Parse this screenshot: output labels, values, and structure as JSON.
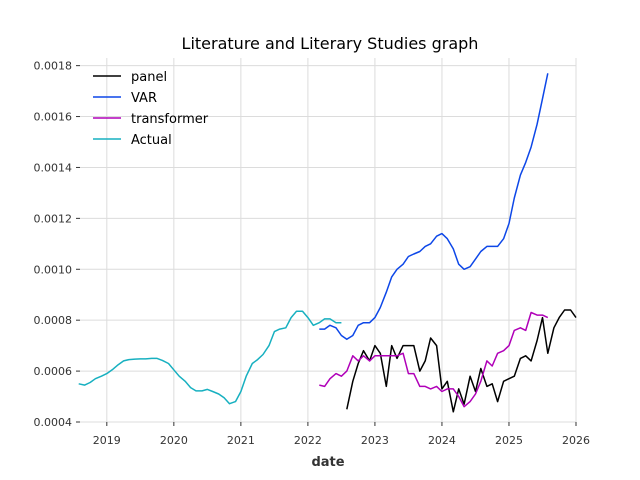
{
  "chart_data": {
    "type": "line",
    "title": "Literature and Literary Studies graph",
    "xlabel": "date",
    "ylabel": "",
    "x_range": [
      2018.6,
      2026.0
    ],
    "ylim": [
      0.0004,
      0.00183
    ],
    "x_ticks": [
      2019,
      2020,
      2021,
      2022,
      2023,
      2024,
      2025,
      2026
    ],
    "y_ticks": [
      0.0004,
      0.0006,
      0.0008,
      0.001,
      0.0012,
      0.0014,
      0.0016,
      0.0018
    ],
    "grid": true,
    "legend_position": "top-left",
    "series": [
      {
        "name": "panel",
        "color": "#000000",
        "x": [
          2022.58,
          2022.67,
          2022.75,
          2022.83,
          2022.92,
          2023.0,
          2023.08,
          2023.17,
          2023.25,
          2023.33,
          2023.42,
          2023.5,
          2023.58,
          2023.67,
          2023.75,
          2023.83,
          2023.92,
          2024.0,
          2024.08,
          2024.17,
          2024.25,
          2024.33,
          2024.42,
          2024.5,
          2024.58,
          2024.67,
          2024.75,
          2024.83,
          2024.92,
          2025.0,
          2025.08,
          2025.17,
          2025.25,
          2025.33,
          2025.42,
          2025.5,
          2025.58,
          2025.67,
          2025.75,
          2025.83,
          2025.92,
          2026.0
        ],
        "y": [
          0.00045,
          0.00056,
          0.00063,
          0.00068,
          0.00064,
          0.0007,
          0.00067,
          0.00054,
          0.0007,
          0.00065,
          0.0007,
          0.0007,
          0.0007,
          0.0006,
          0.00064,
          0.00073,
          0.0007,
          0.00053,
          0.00056,
          0.00044,
          0.00053,
          0.00047,
          0.00058,
          0.00052,
          0.00061,
          0.00054,
          0.00055,
          0.00048,
          0.00056,
          0.00057,
          0.00058,
          0.00065,
          0.00066,
          0.00064,
          0.00072,
          0.00081,
          0.00067,
          0.00077,
          0.00081,
          0.00084,
          0.00084,
          0.00081
        ]
      },
      {
        "name": "VAR",
        "color": "#0d47e8",
        "x": [
          2022.17,
          2022.25,
          2022.33,
          2022.42,
          2022.5,
          2022.58,
          2022.67,
          2022.75,
          2022.83,
          2022.92,
          2023.0,
          2023.08,
          2023.17,
          2023.25,
          2023.33,
          2023.42,
          2023.5,
          2023.58,
          2023.67,
          2023.75,
          2023.83,
          2023.92,
          2024.0,
          2024.08,
          2024.17,
          2024.25,
          2024.33,
          2024.42,
          2024.5,
          2024.58,
          2024.67,
          2024.75,
          2024.83,
          2024.92,
          2025.0,
          2025.08,
          2025.17,
          2025.25,
          2025.33,
          2025.42,
          2025.5,
          2025.58
        ],
        "y": [
          0.000765,
          0.000765,
          0.00078,
          0.00077,
          0.00074,
          0.000725,
          0.00074,
          0.00078,
          0.00079,
          0.00079,
          0.00081,
          0.00085,
          0.00091,
          0.00097,
          0.001,
          0.00102,
          0.00105,
          0.00106,
          0.00107,
          0.00109,
          0.0011,
          0.00113,
          0.00114,
          0.00112,
          0.00108,
          0.00102,
          0.001,
          0.00101,
          0.00104,
          0.00107,
          0.00109,
          0.00109,
          0.00109,
          0.00112,
          0.00118,
          0.00128,
          0.00137,
          0.00142,
          0.00148,
          0.00157,
          0.00167,
          0.00177
        ]
      },
      {
        "name": "transformer",
        "color": "#b000b8",
        "x": [
          2022.17,
          2022.25,
          2022.33,
          2022.42,
          2022.5,
          2022.58,
          2022.67,
          2022.75,
          2022.83,
          2022.92,
          2023.0,
          2023.08,
          2023.17,
          2023.25,
          2023.33,
          2023.42,
          2023.5,
          2023.58,
          2023.67,
          2023.75,
          2023.83,
          2023.92,
          2024.0,
          2024.08,
          2024.17,
          2024.25,
          2024.33,
          2024.42,
          2024.5,
          2024.58,
          2024.67,
          2024.75,
          2024.83,
          2024.92,
          2025.0,
          2025.08,
          2025.17,
          2025.25,
          2025.33,
          2025.42,
          2025.5,
          2025.58
        ],
        "y": [
          0.000545,
          0.00054,
          0.00057,
          0.00059,
          0.00058,
          0.0006,
          0.00066,
          0.00064,
          0.00066,
          0.00064,
          0.00066,
          0.00066,
          0.00066,
          0.00066,
          0.00066,
          0.00067,
          0.00059,
          0.00059,
          0.00054,
          0.00054,
          0.00053,
          0.00054,
          0.00052,
          0.00053,
          0.00053,
          0.0005,
          0.00046,
          0.00048,
          0.00051,
          0.00056,
          0.00064,
          0.00062,
          0.00067,
          0.00068,
          0.0007,
          0.00076,
          0.00077,
          0.00076,
          0.00083,
          0.00082,
          0.00082,
          0.00081
        ]
      },
      {
        "name": "Actual",
        "color": "#17b0c0",
        "x": [
          2018.58,
          2018.67,
          2018.75,
          2018.83,
          2018.92,
          2019.0,
          2019.08,
          2019.17,
          2019.25,
          2019.33,
          2019.42,
          2019.5,
          2019.58,
          2019.67,
          2019.75,
          2019.83,
          2019.92,
          2020.0,
          2020.08,
          2020.17,
          2020.25,
          2020.33,
          2020.42,
          2020.5,
          2020.58,
          2020.67,
          2020.75,
          2020.83,
          2020.92,
          2021.0,
          2021.08,
          2021.17,
          2021.25,
          2021.33,
          2021.42,
          2021.5,
          2021.58,
          2021.67,
          2021.75,
          2021.83,
          2021.92,
          2022.0,
          2022.08,
          2022.17,
          2022.25,
          2022.33,
          2022.42,
          2022.5
        ],
        "y": [
          0.00055,
          0.000545,
          0.000555,
          0.00057,
          0.00058,
          0.00059,
          0.000605,
          0.000625,
          0.00064,
          0.000645,
          0.000647,
          0.000648,
          0.000648,
          0.00065,
          0.00065,
          0.000642,
          0.00063,
          0.000605,
          0.00058,
          0.00056,
          0.000535,
          0.000522,
          0.000522,
          0.000528,
          0.00052,
          0.00051,
          0.000495,
          0.000472,
          0.00048,
          0.00052,
          0.00058,
          0.00063,
          0.000645,
          0.000665,
          0.0007,
          0.000755,
          0.000765,
          0.00077,
          0.00081,
          0.000835,
          0.000835,
          0.00081,
          0.00078,
          0.00079,
          0.000805,
          0.000805,
          0.00079,
          0.00079
        ]
      }
    ]
  }
}
